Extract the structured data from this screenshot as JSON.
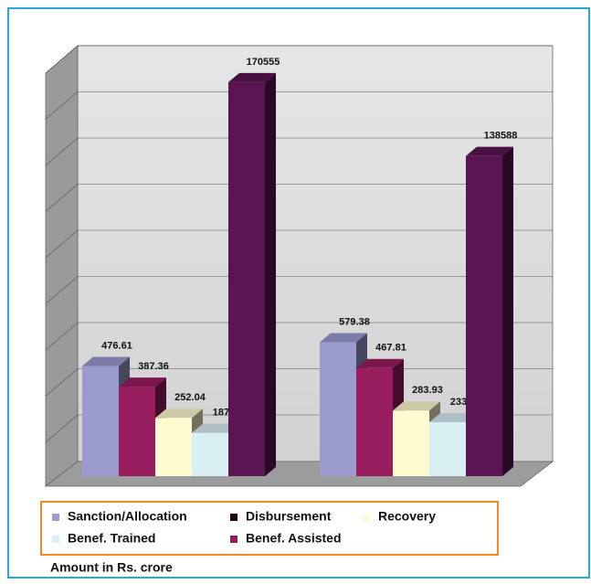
{
  "chart_data": {
    "type": "bar3d",
    "categories": [
      null,
      null
    ],
    "series": [
      {
        "name": "Sanction/Allocation",
        "color": "#9b9bcf",
        "values": [
          476.61,
          579.38
        ]
      },
      {
        "name": "Disbursement",
        "color": "#5a1552",
        "values": [
          170555,
          138588
        ],
        "axis": "y2"
      },
      {
        "name": "Recovery",
        "color": "#fffbd0",
        "values": [
          252.04,
          283.93
        ]
      },
      {
        "name": "Benef. Trained",
        "color": "#d8eff4",
        "values": [
          18748,
          23361
        ],
        "axis": "y2"
      },
      {
        "name": "Benef. Assisted",
        "color": "#981d5f",
        "values": [
          387.36,
          467.81
        ]
      }
    ],
    "ylim": [
      0,
      1800
    ],
    "y2lim": [
      0,
      180000
    ],
    "note": "Amount in Rs. crore"
  }
}
